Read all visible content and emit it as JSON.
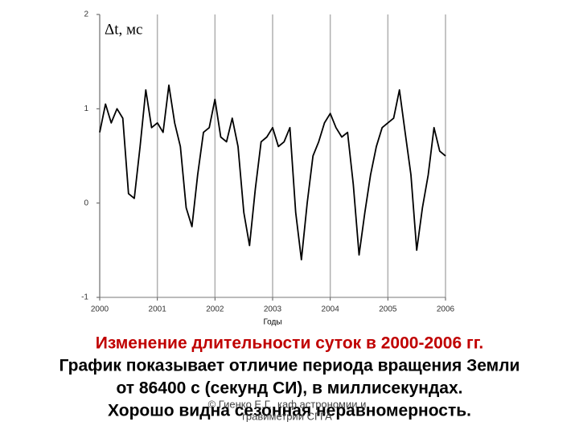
{
  "chart_data": {
    "type": "line",
    "y_label": "Δt, мс",
    "x_label": "Годы",
    "x": [
      2000.0,
      2000.1,
      2000.2,
      2000.3,
      2000.4,
      2000.5,
      2000.6,
      2000.7,
      2000.8,
      2000.9,
      2001.0,
      2001.1,
      2001.2,
      2001.3,
      2001.4,
      2001.5,
      2001.6,
      2001.7,
      2001.8,
      2001.9,
      2002.0,
      2002.1,
      2002.2,
      2002.3,
      2002.4,
      2002.5,
      2002.6,
      2002.7,
      2002.8,
      2002.9,
      2003.0,
      2003.1,
      2003.2,
      2003.3,
      2003.4,
      2003.5,
      2003.6,
      2003.7,
      2003.8,
      2003.9,
      2004.0,
      2004.1,
      2004.2,
      2004.3,
      2004.4,
      2004.5,
      2004.6,
      2004.7,
      2004.8,
      2004.9,
      2005.0,
      2005.1,
      2005.2,
      2005.3,
      2005.4,
      2005.5,
      2005.6,
      2005.7,
      2005.8,
      2005.9,
      2006.0
    ],
    "values": [
      0.75,
      1.05,
      0.85,
      1.0,
      0.9,
      0.1,
      0.05,
      0.6,
      1.2,
      0.8,
      0.85,
      0.75,
      1.25,
      0.85,
      0.6,
      -0.05,
      -0.25,
      0.3,
      0.75,
      0.8,
      1.1,
      0.7,
      0.65,
      0.9,
      0.6,
      -0.1,
      -0.45,
      0.15,
      0.65,
      0.7,
      0.8,
      0.6,
      0.65,
      0.8,
      -0.1,
      -0.6,
      0.0,
      0.5,
      0.65,
      0.85,
      0.95,
      0.8,
      0.7,
      0.75,
      0.2,
      -0.55,
      -0.1,
      0.3,
      0.6,
      0.8,
      0.85,
      0.9,
      1.2,
      0.75,
      0.3,
      -0.5,
      -0.05,
      0.3,
      0.8,
      0.55,
      0.5
    ],
    "color": "#000000",
    "xlim": [
      2000,
      2006
    ],
    "xticks": [
      2000,
      2001,
      2002,
      2003,
      2004,
      2005,
      2006
    ],
    "ylim": [
      -1,
      2
    ],
    "yticks": [
      -1,
      0,
      1,
      2
    ],
    "grid": true
  },
  "caption": {
    "title": "Изменение длительности суток в 2000-2006 гг.",
    "lines": [
      "График показывает отличие периода вращения Земли",
      "от 86400 с (секунд СИ), в миллисекундах.",
      "Хорошо видна сезонная неравномерность."
    ],
    "credit": [
      "© Гиенко Е.Г., каф.астрономии и",
      "гравиметрии СГГА"
    ]
  }
}
